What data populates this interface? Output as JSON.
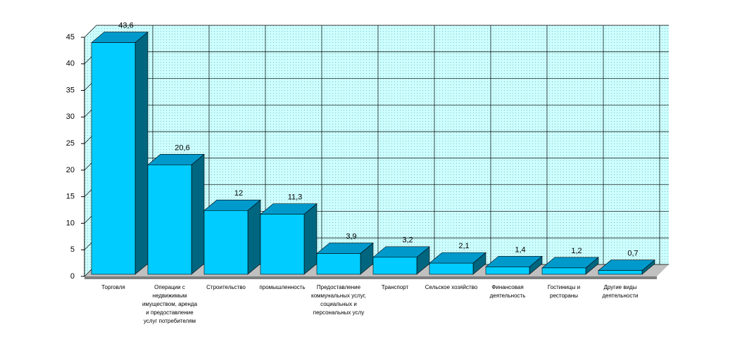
{
  "chart_data": {
    "type": "bar3d",
    "categories": [
      "Торговля",
      "Операции с недвижимым имуществом, аренда и предоставление услуг потребителям",
      "Строительство",
      "промышленность",
      "Предоставление коммунальных услуг, социальных и персональных услу",
      "Транспорт",
      "Сельское хозяйство",
      "Финансовая деятельность",
      "Гостиницы и рестораны",
      "Другие виды деятельности"
    ],
    "values": [
      43.6,
      20.6,
      12,
      11.3,
      3.9,
      3.2,
      2.1,
      1.4,
      1.2,
      0.7
    ],
    "value_labels": [
      "43,6",
      "20,6",
      "12",
      "11,3",
      "3,9",
      "3,2",
      "2,1",
      "1,4",
      "1,2",
      "0,7"
    ],
    "color": "#00ccff",
    "ylim": [
      0,
      45
    ],
    "yticks": [
      0,
      5,
      10,
      15,
      20,
      25,
      30,
      35,
      40,
      45
    ],
    "grid": true
  }
}
